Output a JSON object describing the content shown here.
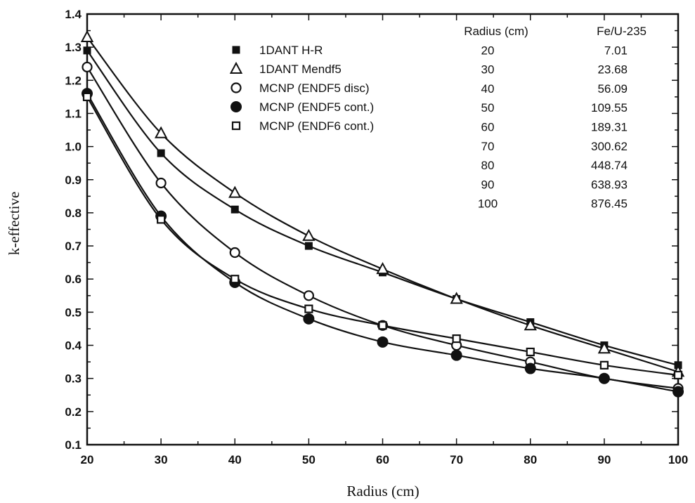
{
  "chart_data": {
    "type": "line",
    "title": "",
    "xlabel": "Radius (cm)",
    "ylabel": "k-effective",
    "xlim": [
      20,
      100
    ],
    "ylim": [
      0.1,
      1.4
    ],
    "x_ticks": [
      "20",
      "30",
      "40",
      "50",
      "60",
      "70",
      "80",
      "90",
      "100"
    ],
    "y_ticks": [
      "0.1",
      "0.2",
      "0.3",
      "0.4",
      "0.5",
      "0.6",
      "0.7",
      "0.8",
      "0.9",
      "1.0",
      "1.1",
      "1.2",
      "1.3",
      "1.4"
    ],
    "grid": false,
    "legend_position": "top-center",
    "series": [
      {
        "name": "1DANT H-R",
        "marker": "filled-square",
        "x": [
          20,
          30,
          40,
          50,
          60,
          70,
          80,
          90,
          100
        ],
        "y": [
          1.29,
          0.98,
          0.81,
          0.7,
          0.62,
          0.54,
          0.47,
          0.4,
          0.34
        ]
      },
      {
        "name": "1DANT Mendf5",
        "marker": "open-triangle",
        "x": [
          20,
          30,
          40,
          50,
          60,
          70,
          80,
          90,
          100
        ],
        "y": [
          1.33,
          1.04,
          0.86,
          0.73,
          0.63,
          0.54,
          0.46,
          0.39,
          0.32
        ]
      },
      {
        "name": "MCNP (ENDF5 disc)",
        "marker": "open-circle",
        "x": [
          20,
          30,
          40,
          50,
          60,
          70,
          80,
          90,
          100
        ],
        "y": [
          1.24,
          0.89,
          0.68,
          0.55,
          0.46,
          0.4,
          0.35,
          0.3,
          0.27
        ]
      },
      {
        "name": "MCNP (ENDF5 cont.)",
        "marker": "filled-circle",
        "x": [
          20,
          30,
          40,
          50,
          60,
          70,
          80,
          90,
          100
        ],
        "y": [
          1.16,
          0.79,
          0.59,
          0.48,
          0.41,
          0.37,
          0.33,
          0.3,
          0.26
        ]
      },
      {
        "name": "MCNP (ENDF6 cont.)",
        "marker": "open-square",
        "x": [
          20,
          30,
          40,
          50,
          60,
          70,
          80,
          90,
          100
        ],
        "y": [
          1.15,
          0.78,
          0.6,
          0.51,
          0.46,
          0.42,
          0.38,
          0.34,
          0.31
        ]
      }
    ],
    "table": {
      "headers": [
        "Radius (cm)",
        "Fe/U-235"
      ],
      "rows": [
        [
          "20",
          "7.01"
        ],
        [
          "30",
          "23.68"
        ],
        [
          "40",
          "56.09"
        ],
        [
          "50",
          "109.55"
        ],
        [
          "60",
          "189.31"
        ],
        [
          "70",
          "300.62"
        ],
        [
          "80",
          "448.74"
        ],
        [
          "90",
          "638.93"
        ],
        [
          "100",
          "876.45"
        ]
      ]
    }
  }
}
